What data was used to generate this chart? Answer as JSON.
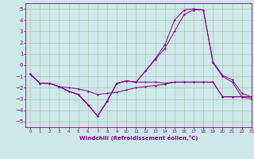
{
  "title": "",
  "xlabel": "Windchill (Refroidissement éolien,°C)",
  "background_color": "#cce8e8",
  "grid_color": "#aaccaa",
  "line_color": "#880088",
  "xlim": [
    -0.5,
    23
  ],
  "ylim": [
    -5.5,
    5.5
  ],
  "xticks": [
    0,
    1,
    2,
    3,
    4,
    5,
    6,
    7,
    8,
    9,
    10,
    11,
    12,
    13,
    14,
    15,
    16,
    17,
    18,
    19,
    20,
    21,
    22,
    23
  ],
  "yticks": [
    -5,
    -4,
    -3,
    -2,
    -1,
    0,
    1,
    2,
    3,
    4,
    5
  ],
  "lines": [
    {
      "x": [
        0,
        1,
        2,
        3,
        4,
        5,
        6,
        7,
        8,
        9,
        10,
        11,
        12,
        13,
        14,
        15,
        16,
        17,
        18,
        19,
        20,
        21,
        22,
        23
      ],
      "y": [
        -0.8,
        -1.6,
        -1.6,
        -1.9,
        -2.0,
        -2.1,
        -2.3,
        -2.6,
        -2.5,
        -2.4,
        -2.2,
        -2.0,
        -1.9,
        -1.8,
        -1.7,
        -1.5,
        -1.5,
        -1.5,
        -1.5,
        -1.5,
        -2.8,
        -2.8,
        -2.8,
        -2.8
      ]
    },
    {
      "x": [
        0,
        1,
        2,
        3,
        4,
        5,
        6,
        7,
        8,
        9,
        10,
        11,
        12,
        13,
        14,
        15,
        16,
        17,
        18,
        19,
        20,
        21,
        22,
        23
      ],
      "y": [
        -0.8,
        -1.6,
        -1.6,
        -1.9,
        -2.3,
        -2.6,
        -3.5,
        -4.5,
        -3.2,
        -1.6,
        -1.4,
        -1.5,
        -1.5,
        -1.5,
        -1.6,
        -1.5,
        -1.5,
        -1.5,
        -1.5,
        -1.5,
        -2.8,
        -2.8,
        -2.8,
        -2.8
      ]
    },
    {
      "x": [
        0,
        1,
        2,
        3,
        4,
        5,
        6,
        7,
        8,
        9,
        10,
        11,
        12,
        13,
        14,
        15,
        16,
        17,
        18,
        19,
        20,
        21,
        22,
        23
      ],
      "y": [
        -0.8,
        -1.6,
        -1.6,
        -1.9,
        -2.3,
        -2.6,
        -3.5,
        -4.5,
        -3.2,
        -1.6,
        -1.4,
        -1.5,
        -0.5,
        0.5,
        1.5,
        3.0,
        4.5,
        4.9,
        4.9,
        0.2,
        -1.0,
        -1.5,
        -2.8,
        -3.0
      ]
    },
    {
      "x": [
        0,
        1,
        2,
        3,
        4,
        5,
        6,
        7,
        8,
        9,
        10,
        11,
        12,
        13,
        14,
        15,
        16,
        17,
        18,
        19,
        20,
        21,
        22,
        23
      ],
      "y": [
        -0.8,
        -1.6,
        -1.6,
        -1.9,
        -2.3,
        -2.6,
        -3.5,
        -4.5,
        -3.2,
        -1.6,
        -1.4,
        -1.5,
        -0.5,
        0.6,
        1.8,
        4.0,
        4.9,
        5.0,
        4.9,
        0.3,
        -0.9,
        -1.3,
        -2.5,
        -2.8
      ]
    }
  ]
}
